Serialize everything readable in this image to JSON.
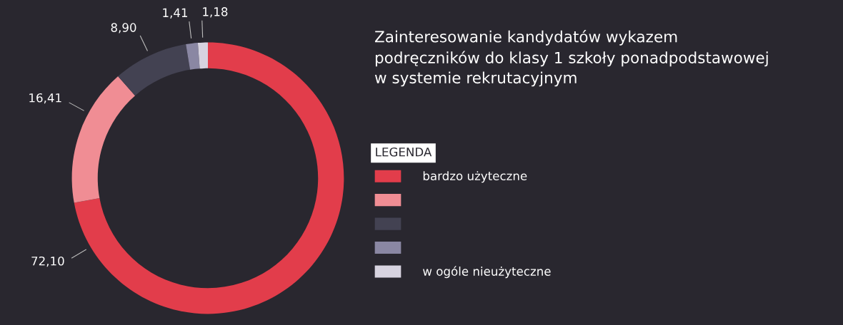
{
  "chart_data": {
    "type": "donut",
    "title": "Zainteresowanie kandydatów wykazem\npodręczników do klasy 1 szkoły ponadpodstawowej\nw systemie rekrutacyjnym",
    "legend_title": "LEGENDA",
    "legend": "right",
    "categories": [
      "bardzo użyteczne",
      null,
      null,
      null,
      "w ogóle nieużyteczne"
    ],
    "values": [
      72.1,
      16.41,
      8.9,
      1.41,
      1.18
    ],
    "value_labels": [
      "72,10",
      "16,41",
      "8,90",
      "1,41",
      "1,18"
    ],
    "colors": [
      "#e23d4b",
      "#f08d94",
      "#434252",
      "#8a87a3",
      "#d7d3e0"
    ]
  }
}
